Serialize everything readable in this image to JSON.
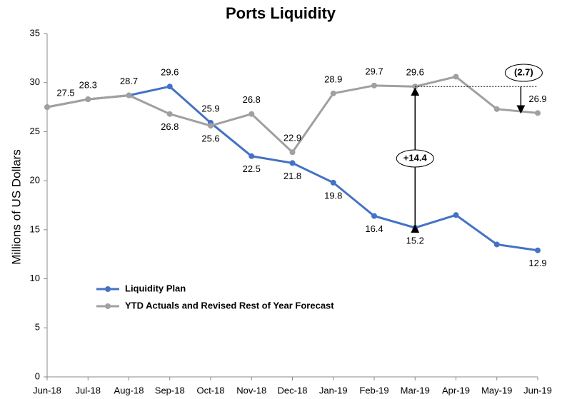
{
  "chart_data": {
    "type": "line",
    "title": "Ports Liquidity",
    "ylabel": "Millions of US Dollars",
    "categories": [
      "Jun-18",
      "Jul-18",
      "Aug-18",
      "Sep-18",
      "Oct-18",
      "Nov-18",
      "Dec-18",
      "Jan-19",
      "Feb-19",
      "Mar-19",
      "Apr-19",
      "May-19",
      "Jun-19"
    ],
    "series": [
      {
        "name": "Liquidity Plan",
        "color": "#4472c4",
        "values": [
          27.5,
          28.3,
          28.7,
          29.6,
          25.9,
          22.5,
          21.8,
          19.8,
          16.4,
          15.2,
          16.5,
          13.5,
          12.9
        ],
        "value_labels": [
          "27.5",
          "28.3",
          "28.7",
          "29.6",
          "25.9",
          "22.5",
          "21.8",
          "19.8",
          "16.4",
          "15.2",
          null,
          null,
          "12.9"
        ]
      },
      {
        "name": "YTD Actuals and Revised Rest of Year Forecast",
        "color": "#a0a0a0",
        "values": [
          27.5,
          28.3,
          28.7,
          26.8,
          25.6,
          26.8,
          22.9,
          28.9,
          29.7,
          29.6,
          30.6,
          27.3,
          26.9
        ],
        "value_labels": [
          null,
          null,
          null,
          "26.8",
          "25.6",
          "26.8",
          "22.9",
          "28.9",
          "29.7",
          "29.6",
          null,
          null,
          "26.9"
        ]
      }
    ],
    "ylim": [
      0,
      35
    ],
    "yticks": [
      0,
      5,
      10,
      15,
      20,
      25,
      30,
      35
    ],
    "grid": false,
    "legend": "center-left",
    "annotations": [
      {
        "text": "+14.4"
      },
      {
        "text": "(2.7)"
      }
    ]
  }
}
